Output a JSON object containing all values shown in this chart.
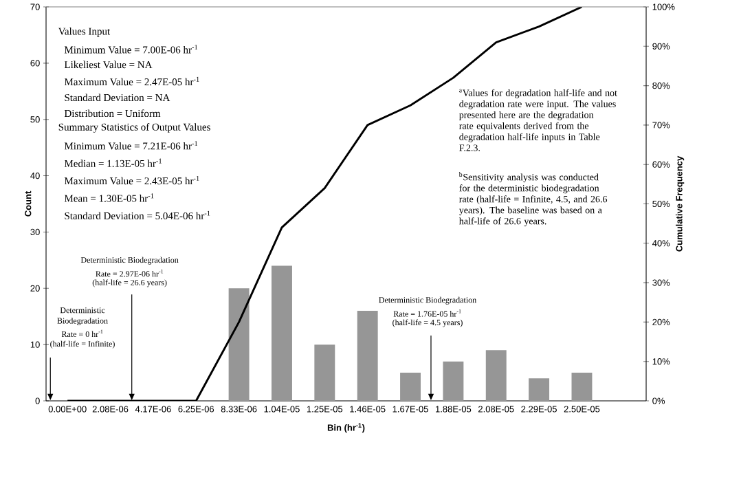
{
  "chart_data": {
    "type": "bar",
    "xlabel": "Bin (hr$^{-1}$)",
    "ylabel": "Count",
    "y2label": "Cumulative Frequency",
    "categories": [
      "0.00E+00",
      "2.08E-06",
      "4.17E-06",
      "6.25E-06",
      "8.33E-06",
      "1.04E-05",
      "1.25E-05",
      "1.46E-05",
      "1.67E-05",
      "1.88E-05",
      "2.08E-05",
      "2.29E-05",
      "2.50E-05",
      null
    ],
    "series": [
      {
        "type": "bar",
        "color": "#969696",
        "values": [
          0,
          0,
          0,
          0,
          20,
          24,
          10,
          16,
          5,
          7,
          9,
          4,
          5,
          0
        ]
      },
      {
        "type": "line",
        "axis": "y2",
        "color": "#000000",
        "values": [
          0,
          0,
          0,
          0,
          20,
          44,
          54,
          70,
          75,
          82,
          91,
          95,
          100,
          null
        ]
      }
    ],
    "ylim": [
      0,
      70
    ],
    "yticks": [
      0,
      10,
      20,
      30,
      40,
      50,
      60,
      70
    ],
    "y2lim": [
      0,
      100
    ],
    "y2ticks": [
      {
        "value": 0,
        "label": "0%"
      },
      {
        "value": 10,
        "label": "10%"
      },
      {
        "value": 20,
        "label": "20%"
      },
      {
        "value": 30,
        "label": "30%"
      },
      {
        "value": 40,
        "label": "40%"
      },
      {
        "value": 50,
        "label": "50%"
      },
      {
        "value": 60,
        "label": "60%"
      },
      {
        "value": 70,
        "label": "70%"
      },
      {
        "value": 80,
        "label": "80%"
      },
      {
        "value": 90,
        "label": "90%"
      },
      {
        "value": 100,
        "label": "100%"
      }
    ],
    "grid": false,
    "legend": false,
    "marker": "none",
    "line_style": "solid",
    "annotations": [
      "Values Input",
      "Minimum Value = 7.00E-06 hr$^{-1}$",
      "Likeliest Value = NA",
      "Maximum Value = 2.47E-05 hr$^{-1}$",
      "Standard Deviation = NA",
      "Distribution = Uniform",
      "Summary Statistics of Output Values",
      "Minimum Value = 7.21E-06 hr$^{-1}$",
      "Median = 1.13E-05 hr$^{-1}$",
      "Maximum Value = 2.43E-05 hr$^{-1}$",
      "Mean = 1.30E-05 hr$^{-1}$",
      "Standard Deviation = 5.04E-06 hr$^{-1}$",
      "$^{a}$Values for degradation half-life and not degradation rate were input. The values presented here are the degradation rate equivalents derived from the degradation half-life inputs in Table F.2.3.",
      "$^{b}$Sensitivity analysis was conducted for the deterministic biodegradation rate (half-life = Infinite, 4.5, and 26.6 years).  The baseline was based on a half-life of 26.6 years.",
      "Deterministic",
      "Biodegradation",
      "Rate = 0 hr$^{-1}$",
      "(half-life = Infinite)",
      "Deterministic Biodegradation",
      "Rate = 2.97E-06 hr$^{-1}$",
      "(half-life = 26.6 years)",
      "Deterministic Biodegradation",
      "Rate = 1.76E-05 hr$^{-1}$",
      "(half-life = 4.5 years)"
    ]
  }
}
